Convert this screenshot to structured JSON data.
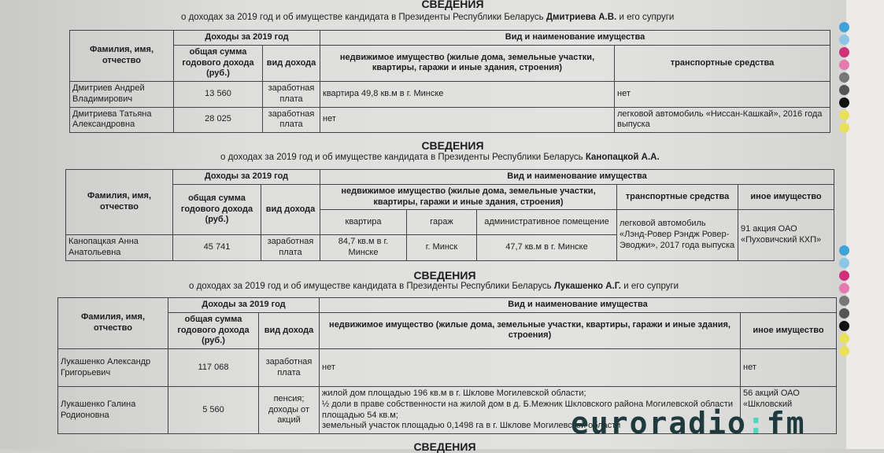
{
  "colors": {
    "watermark": "#1f3a3c",
    "accent": "#4fd6c0"
  },
  "sections": [
    {
      "title": "СВЕДЕНИЯ",
      "subtitle_pre": "о доходах за 2019 год и об имуществе кандидата в Президенты Республики Беларусь ",
      "subtitle_name": "Дмитриева А.В.",
      "subtitle_post": " и его супруги",
      "headers": {
        "name": "Фамилия, имя, отчество",
        "income": "Доходы за 2019 год",
        "sum": "общая сумма годового дохода (руб.)",
        "type": "вид дохода",
        "property": "Вид и наименование имущества",
        "real": "недвижимое имущество (жилые дома, земельные участки, квартиры, гаражи и иные здания, строения)",
        "transport": "транспортные средства"
      },
      "rows": [
        {
          "name": "Дмитриев Андрей Владимирович",
          "sum": "13 560",
          "type": "заработная плата",
          "real": "квартира 49,8 кв.м в г. Минске",
          "transport": "нет"
        },
        {
          "name": "Дмитриева Татьяна Александровна",
          "sum": "28 025",
          "type": "заработная плата",
          "real": "нет",
          "transport": "легковой автомобиль «Ниссан-Кашкай», 2016 года выпуска"
        }
      ]
    },
    {
      "title": "СВЕДЕНИЯ",
      "subtitle_pre": "о доходах за 2019 год и об имуществе кандидата в Президенты Республики Беларусь ",
      "subtitle_name": "Канопацкой А.А.",
      "subtitle_post": "",
      "headers": {
        "name": "Фамилия, имя, отчество",
        "income": "Доходы за 2019 год",
        "sum": "общая сумма годового дохода (руб.)",
        "type": "вид дохода",
        "property": "Вид и наименование имущества",
        "real": "недвижимое имущество (жилые дома, земельные участки, квартиры, гаражи и иные здания, строения)",
        "flat": "квартира",
        "garage": "гараж",
        "admin": "административное помещение",
        "transport": "транспортные средства",
        "other": "иное имущество"
      },
      "rows": [
        {
          "name": "Канопацкая Анна Анатольевна",
          "sum": "45 741",
          "type": "заработная плата",
          "flat": "84,7 кв.м в г. Минске",
          "garage": "г. Минск",
          "admin": "47,7 кв.м в г. Минске",
          "transport": "легковой автомобиль «Лэнд-Ровер Рэндж Ровер-Эводжи», 2017 года выпуска",
          "other": "91 акция ОАО «Пуховичский КХП»"
        }
      ]
    },
    {
      "title": "СВЕДЕНИЯ",
      "subtitle_pre": "о доходах за 2019 год и об имуществе кандидата в Президенты Республики Беларусь ",
      "subtitle_name": "Лукашенко А.Г.",
      "subtitle_post": " и его супруги",
      "headers": {
        "name": "Фамилия, имя, отчество",
        "income": "Доходы за 2019 год",
        "sum": "общая сумма годового дохода (руб.)",
        "type": "вид дохода",
        "property": "Вид и наименование имущества",
        "real": "недвижимое имущество (жилые дома, земельные участки, квартиры, гаражи и иные здания, строения)",
        "other": "иное имущество"
      },
      "rows": [
        {
          "name": "Лукашенко Александр Григорьевич",
          "sum": "117 068",
          "type": "заработная плата",
          "real": "нет",
          "other": "нет"
        },
        {
          "name": "Лукашенко Галина Родионовна",
          "sum": "5 560",
          "type": "пенсия; доходы от акций",
          "real1": "жилой дом площадью 196 кв.м в г. Шклове Могилевской области;",
          "real2": "½ доли в праве собственности на жилой дом в д. Б.Межник Шкловского района Могилевской области площадью 54 кв.м;",
          "real3": "земельный участок площадью 0,1498 га в г. Шклове Могилевской области",
          "other": "56 акций ОАО «Шкловский"
        }
      ]
    },
    {
      "title": "СВЕДЕНИЯ"
    }
  ],
  "watermark": {
    "text": "euroradio",
    "sep": ":",
    "suffix": "fm"
  }
}
